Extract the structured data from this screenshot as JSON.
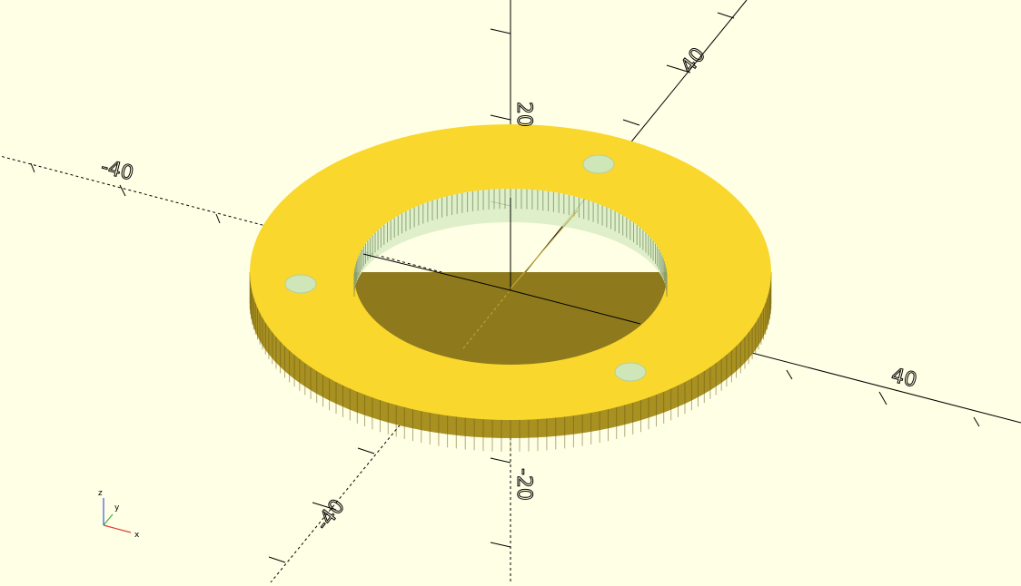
{
  "viewport": {
    "background_color": "#ffffe5",
    "model_color": "#f9d72c",
    "model_shade_color": "#8e7a1d",
    "hole_color": "#cfe6b9",
    "axis_color": "#000000"
  },
  "axis_labels": {
    "x_pos": "40",
    "x_neg": "-40",
    "y_pos": "40",
    "y_neg": "-40",
    "z_pos": "20",
    "z_neg": "-20"
  },
  "axes_indicator": {
    "x": "x",
    "y": "y",
    "z": "z",
    "x_color": "#e03c3c",
    "y_color": "#3cb43c",
    "z_color": "#3c5ae0"
  }
}
